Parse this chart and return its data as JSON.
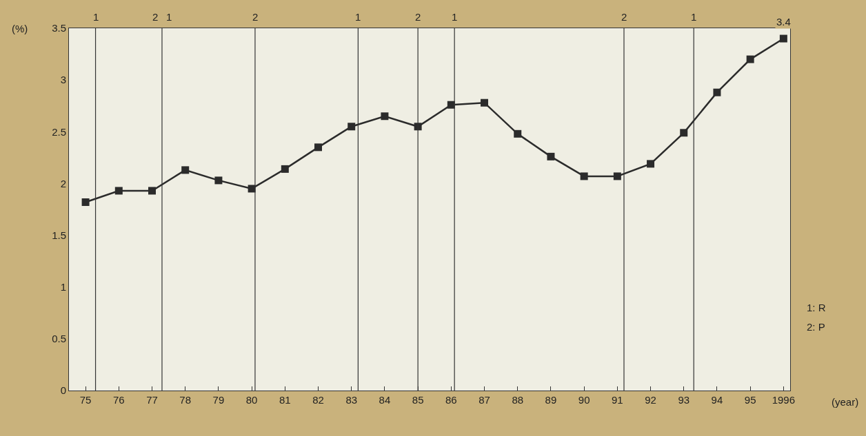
{
  "chart_data": {
    "type": "line",
    "x": [
      1975,
      1976,
      1977,
      1978,
      1979,
      1980,
      1981,
      1982,
      1983,
      1984,
      1985,
      1986,
      1987,
      1988,
      1989,
      1990,
      1991,
      1992,
      1993,
      1994,
      1995,
      1996
    ],
    "values": [
      1.82,
      1.93,
      1.93,
      2.13,
      2.03,
      1.95,
      2.14,
      2.35,
      2.55,
      2.65,
      2.55,
      2.76,
      2.78,
      2.48,
      2.26,
      2.07,
      2.07,
      2.19,
      2.49,
      2.88,
      3.2,
      3.4
    ],
    "value_labels": [
      null,
      null,
      null,
      null,
      null,
      null,
      null,
      null,
      null,
      null,
      null,
      null,
      null,
      null,
      null,
      null,
      null,
      null,
      null,
      null,
      null,
      "3.4"
    ],
    "color": "#2b2b2b",
    "marker": "square",
    "line_style": "solid",
    "xlabel": "(year)",
    "ylabel": "(%)",
    "xlim": [
      1974.5,
      1996.2
    ],
    "xticks": [
      {
        "value": 1975,
        "label": "75"
      },
      {
        "value": 1976,
        "label": "76"
      },
      {
        "value": 1977,
        "label": "77"
      },
      {
        "value": 1978,
        "label": "78"
      },
      {
        "value": 1979,
        "label": "79"
      },
      {
        "value": 1980,
        "label": "80"
      },
      {
        "value": 1981,
        "label": "81"
      },
      {
        "value": 1982,
        "label": "82"
      },
      {
        "value": 1983,
        "label": "83"
      },
      {
        "value": 1984,
        "label": "84"
      },
      {
        "value": 1985,
        "label": "85"
      },
      {
        "value": 1986,
        "label": "86"
      },
      {
        "value": 1987,
        "label": "87"
      },
      {
        "value": 1988,
        "label": "88"
      },
      {
        "value": 1989,
        "label": "89"
      },
      {
        "value": 1990,
        "label": "90"
      },
      {
        "value": 1991,
        "label": "91"
      },
      {
        "value": 1992,
        "label": "92"
      },
      {
        "value": 1993,
        "label": "93"
      },
      {
        "value": 1994,
        "label": "94"
      },
      {
        "value": 1995,
        "label": "95"
      },
      1996
    ],
    "ylim": [
      0,
      3.5
    ],
    "yticks": [
      0,
      0.5,
      1,
      1.5,
      2,
      2.5,
      3,
      3.5
    ],
    "grid": false,
    "legend": false,
    "ref_lines": [
      {
        "axis": "x",
        "value": 1975.3
      },
      {
        "axis": "x",
        "value": 1977.3
      },
      {
        "axis": "x",
        "value": 1980.1
      },
      {
        "axis": "x",
        "value": 1983.2
      },
      {
        "axis": "x",
        "value": 1985.0
      },
      {
        "axis": "x",
        "value": 1986.1
      },
      {
        "axis": "x",
        "value": 1991.2
      },
      {
        "axis": "x",
        "value": 1993.3
      }
    ],
    "annotations": [
      {
        "text": "1",
        "x": 1975.3,
        "y": 3.5
      },
      {
        "text": "2",
        "x": 1977.3,
        "y": 3.5
      },
      {
        "text": "1",
        "x": 1977.3,
        "y": 3.5
      },
      {
        "text": "2",
        "x": 1980.1,
        "y": 3.5
      },
      {
        "text": "1",
        "x": 1983.2,
        "y": 3.5
      },
      {
        "text": "2",
        "x": 1985.0,
        "y": 3.5
      },
      {
        "text": "1",
        "x": 1986.1,
        "y": 3.5
      },
      {
        "text": "2",
        "x": 1991.2,
        "y": 3.5
      },
      {
        "text": "1",
        "x": 1993.3,
        "y": 3.5
      },
      "1: R",
      "2: P"
    ]
  }
}
